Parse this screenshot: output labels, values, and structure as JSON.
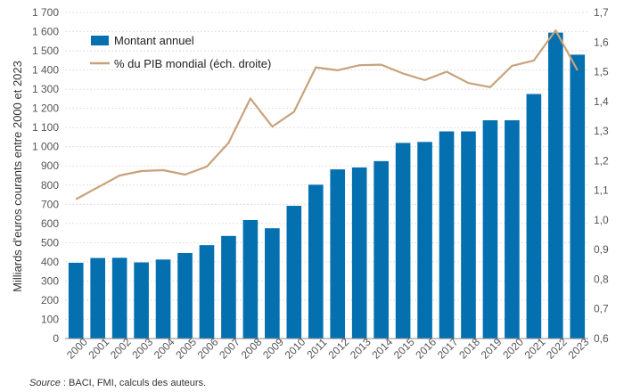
{
  "colors": {
    "bar": "#0570b0",
    "line": "#c8a27c",
    "axis": "#888888",
    "grid": "#d9d9d9"
  },
  "source": {
    "label": "Source",
    "text": " : BACI, FMI, calculs des auteurs."
  },
  "chart_data": {
    "type": "bar",
    "ylabel": "Milliards d'euros courants entre 2000 et 2023",
    "ylim": [
      0,
      1700
    ],
    "yticks": [
      0,
      100,
      200,
      300,
      400,
      500,
      600,
      700,
      800,
      900,
      1000,
      1100,
      1200,
      1300,
      1400,
      1500,
      1600,
      1700
    ],
    "ytick_labels": [
      "0",
      "100",
      "200",
      "300",
      "400",
      "500",
      "600",
      "700",
      "800",
      "900",
      "1 000",
      "1 100",
      "1 200",
      "1 300",
      "1 400",
      "1 500",
      "1 600",
      "1 700"
    ],
    "y2lim": [
      0.6,
      1.7
    ],
    "y2ticks": [
      "0,6",
      "0,7",
      "0,8",
      "0,9",
      "1,0",
      "1,1",
      "1,2",
      "1,3",
      "1,4",
      "1,5",
      "1,6",
      "1,7"
    ],
    "y2tick_values": [
      0.6,
      0.7,
      0.8,
      0.9,
      1.0,
      1.1,
      1.2,
      1.3,
      1.4,
      1.5,
      1.6,
      1.7
    ],
    "categories": [
      "2000",
      "2001",
      "2002",
      "2003",
      "2004",
      "2005",
      "2006",
      "2007",
      "2008",
      "2009",
      "2010",
      "2011",
      "2012",
      "2013",
      "2014",
      "2015",
      "2016",
      "2017",
      "2018",
      "2019",
      "2020",
      "2021",
      "2022",
      "2023"
    ],
    "legend_position": "top-left",
    "series": [
      {
        "name": "Montant annuel",
        "type": "bar",
        "axis": "left",
        "values": [
          395,
          420,
          421,
          397,
          412,
          446,
          487,
          535,
          618,
          575,
          692,
          802,
          882,
          892,
          925,
          1020,
          1025,
          1080,
          1080,
          1138,
          1138,
          1275,
          1595,
          1480
        ]
      },
      {
        "name": "% du PIB mondial (éch. droite)",
        "type": "line",
        "axis": "right",
        "values": [
          1.07,
          1.11,
          1.15,
          1.165,
          1.168,
          1.153,
          1.18,
          1.26,
          1.41,
          1.315,
          1.365,
          1.515,
          1.505,
          1.522,
          1.524,
          1.494,
          1.472,
          1.5,
          1.462,
          1.448,
          1.52,
          1.538,
          1.64,
          1.505
        ]
      }
    ]
  }
}
